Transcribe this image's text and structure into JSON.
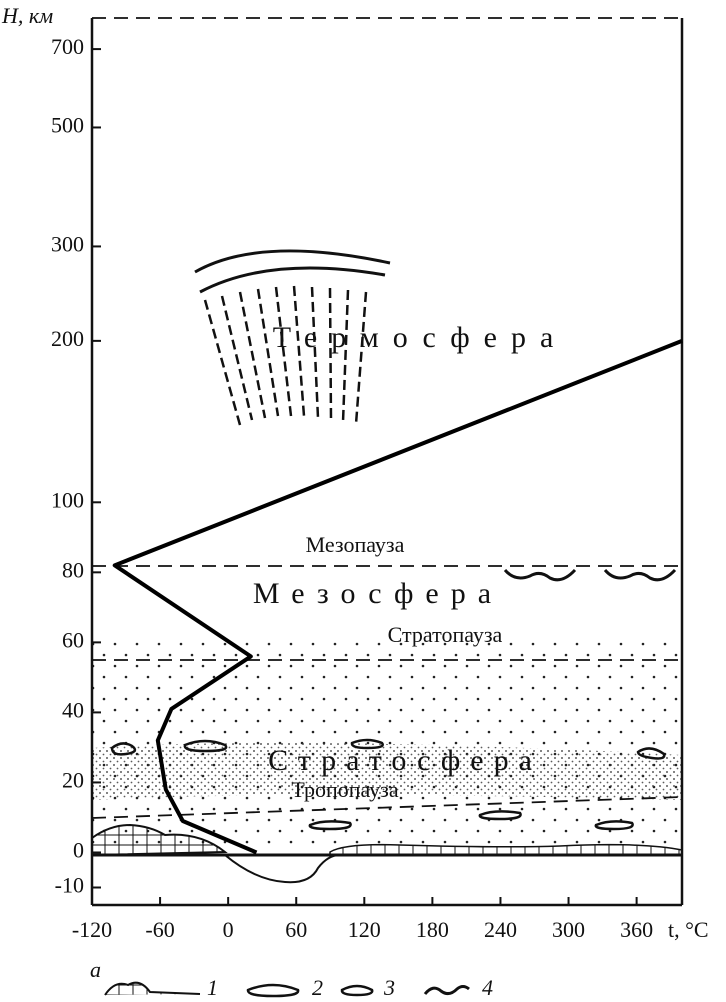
{
  "chart_data": {
    "type": "line",
    "y_label": "H, км",
    "x_label": "t, °C",
    "x": [
      25,
      -40,
      -55,
      -62,
      -50,
      20,
      -100,
      400
    ],
    "series": [
      {
        "values": [
          0,
          9,
          18,
          32,
          41,
          56,
          82,
          200
        ],
        "color": "#000000"
      }
    ],
    "xlim": [
      -120,
      400
    ],
    "xticks": [
      -120,
      -60,
      0,
      60,
      120,
      180,
      240,
      300,
      360
    ],
    "ylim": [
      -15,
      800
    ],
    "y_break": 100,
    "y_scale_above_break": "log",
    "yticks": [
      -10,
      0,
      20,
      40,
      60,
      80,
      100,
      200,
      300,
      500,
      700
    ],
    "annotations": {
      "thermosphere": "Термосфера",
      "mesopause": "Мезопауза",
      "mesosphere": "Мезосфера",
      "stratopause": "Стратопауза",
      "stratosphere": "Стратосфера",
      "tropopause": "Тропопауза"
    },
    "legend": [
      "а",
      "1",
      "2",
      "3",
      "4"
    ]
  }
}
